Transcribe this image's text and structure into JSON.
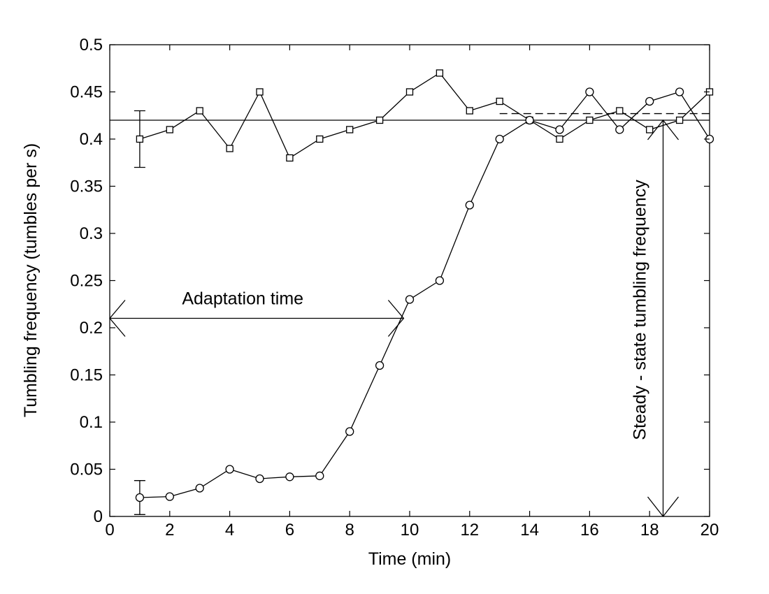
{
  "chart_data": {
    "type": "line",
    "title": "",
    "xlabel": "Time (min)",
    "ylabel": "Tumbling frequency (tumbles per s)",
    "xlim": [
      0,
      20
    ],
    "ylim": [
      0,
      0.5
    ],
    "x_ticks": [
      0,
      2,
      4,
      6,
      8,
      10,
      12,
      14,
      16,
      18,
      20
    ],
    "x_tick_labels": [
      "0",
      "2",
      "4",
      "6",
      "8",
      "10",
      "12",
      "14",
      "16",
      "18",
      "20"
    ],
    "y_ticks": [
      0,
      0.05,
      0.1,
      0.15,
      0.2,
      0.25,
      0.3,
      0.35,
      0.4,
      0.45,
      0.5
    ],
    "y_tick_labels": [
      "0",
      "0.05",
      "0.1",
      "0.15",
      "0.2",
      "0.25",
      "0.3",
      "0.35",
      "0.4",
      "0.45",
      "0.5"
    ],
    "grid": false,
    "legend": "none",
    "series": [
      {
        "marker": "square",
        "x": [
          1,
          2,
          3,
          4,
          5,
          6,
          7,
          8,
          9,
          10,
          11,
          12,
          13,
          14,
          15,
          16,
          17,
          18,
          19,
          20
        ],
        "y": [
          0.4,
          0.41,
          0.43,
          0.39,
          0.45,
          0.38,
          0.4,
          0.41,
          0.42,
          0.45,
          0.47,
          0.43,
          0.44,
          0.42,
          0.4,
          0.42,
          0.43,
          0.41,
          0.42,
          0.45
        ],
        "error_bar": {
          "x": 1,
          "low": 0.37,
          "high": 0.43
        }
      },
      {
        "marker": "circle",
        "x": [
          1,
          2,
          3,
          4,
          5,
          6,
          7,
          8,
          9,
          10,
          11,
          12,
          13,
          14,
          15,
          16,
          17,
          18,
          19,
          20
        ],
        "y": [
          0.02,
          0.021,
          0.03,
          0.05,
          0.04,
          0.042,
          0.043,
          0.09,
          0.16,
          0.23,
          0.25,
          0.33,
          0.4,
          0.42,
          0.41,
          0.45,
          0.41,
          0.44,
          0.45,
          0.4
        ],
        "error_bar": {
          "x": 1,
          "low": 0.002,
          "high": 0.038
        }
      }
    ],
    "reference_lines": [
      {
        "style": "solid",
        "y": 0.42,
        "x_from": 0,
        "x_to": 20
      },
      {
        "style": "dashed",
        "y": 0.427,
        "x_from": 13,
        "x_to": 20
      }
    ],
    "annotations": [
      {
        "text": "Adaptation time",
        "type": "horizontal-double-arrow",
        "y": 0.21,
        "x_from": 0,
        "x_to": 9.8
      },
      {
        "text": "Steady - state tumbling frequency",
        "type": "vertical-double-arrow",
        "x": 18.45,
        "y_from": 0,
        "y_to": 0.42
      }
    ]
  }
}
